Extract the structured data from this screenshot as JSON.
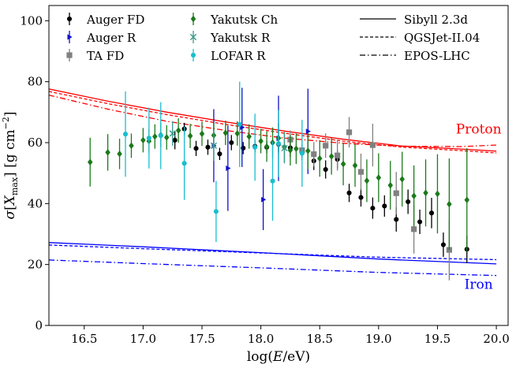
{
  "chart_data": {
    "type": "scatter",
    "xlabel": "log(E/eV)",
    "ylabel": "σ[X_max] [g cm^−2]",
    "xlim": [
      16.2,
      20.1
    ],
    "ylim": [
      0,
      105
    ],
    "xticks": [
      "16.5",
      "17.0",
      "17.5",
      "18.0",
      "18.5",
      "19.0",
      "19.5",
      "20.0"
    ],
    "yticks": [
      "0",
      "20",
      "40",
      "60",
      "80",
      "100"
    ],
    "grid": false,
    "legend_placement": "top",
    "data_series": [
      {
        "name": "Auger FD",
        "marker": "circle",
        "color": "#000000",
        "points": [
          [
            17.27,
            60.8,
            3.0
          ],
          [
            17.35,
            64.5,
            2.0
          ],
          [
            17.45,
            58.1,
            2.5
          ],
          [
            17.55,
            58.5,
            2.5
          ],
          [
            17.65,
            56.3,
            2.0
          ],
          [
            17.75,
            60.0,
            2.5
          ],
          [
            17.85,
            58.2,
            2.0
          ],
          [
            17.95,
            58.8,
            2.0
          ],
          [
            18.05,
            58.5,
            2.0
          ],
          [
            18.15,
            59.5,
            2.5
          ],
          [
            18.25,
            58.3,
            3.0
          ],
          [
            18.35,
            56.8,
            2.5
          ],
          [
            18.45,
            54.0,
            3.0
          ],
          [
            18.55,
            51.2,
            3.0
          ],
          [
            18.65,
            54.5,
            3.0
          ],
          [
            18.75,
            43.5,
            3.0
          ],
          [
            18.85,
            42.0,
            3.0
          ],
          [
            18.95,
            38.5,
            3.5
          ],
          [
            19.05,
            39.2,
            3.5
          ],
          [
            19.15,
            34.8,
            4.0
          ],
          [
            19.25,
            40.6,
            4.0
          ],
          [
            19.35,
            34.0,
            4.0
          ],
          [
            19.45,
            36.9,
            5.0
          ],
          [
            19.55,
            26.5,
            4.0
          ],
          [
            19.75,
            25.0,
            4.5
          ]
        ]
      },
      {
        "name": "Auger R",
        "marker": "triangle-right",
        "color": "#1010cc",
        "points": [
          [
            17.6,
            59.0,
            12.0
          ],
          [
            17.72,
            51.6,
            14.0
          ],
          [
            17.84,
            65.0,
            13.0
          ],
          [
            18.02,
            41.3,
            10.0
          ],
          [
            18.15,
            61.4,
            14.0
          ],
          [
            18.4,
            63.7,
            14.0
          ]
        ]
      },
      {
        "name": "TA FD",
        "marker": "square",
        "color": "#808080",
        "points": [
          [
            18.25,
            61.0,
            3.0
          ],
          [
            18.35,
            57.5,
            3.0
          ],
          [
            18.45,
            56.2,
            4.0
          ],
          [
            18.55,
            59.0,
            4.0
          ],
          [
            18.65,
            55.8,
            5.0
          ],
          [
            18.75,
            63.4,
            5.0
          ],
          [
            18.85,
            50.4,
            6.0
          ],
          [
            18.95,
            59.2,
            7.0
          ],
          [
            19.15,
            43.4,
            7.0
          ],
          [
            19.3,
            31.6,
            8.0
          ],
          [
            19.6,
            24.8,
            10.0
          ]
        ]
      },
      {
        "name": "Yakutsk Ch",
        "marker": "diamond",
        "color": "#1a7a1a",
        "points": [
          [
            16.55,
            53.6,
            8.0
          ],
          [
            16.7,
            56.8,
            6.0
          ],
          [
            16.8,
            56.3,
            5.0
          ],
          [
            16.9,
            59.0,
            4.0
          ],
          [
            17.0,
            60.8,
            4.0
          ],
          [
            17.05,
            60.5,
            4.0
          ],
          [
            17.1,
            62.0,
            4.0
          ],
          [
            17.15,
            62.5,
            4.0
          ],
          [
            17.2,
            61.7,
            4.0
          ],
          [
            17.3,
            64.0,
            4.0
          ],
          [
            17.4,
            62.2,
            4.0
          ],
          [
            17.5,
            62.9,
            4.0
          ],
          [
            17.6,
            62.4,
            4.0
          ],
          [
            17.7,
            63.2,
            4.0
          ],
          [
            17.8,
            63.0,
            4.0
          ],
          [
            17.9,
            62.0,
            4.0
          ],
          [
            18.0,
            60.5,
            4.0
          ],
          [
            18.05,
            58.7,
            5.0
          ],
          [
            18.1,
            60.0,
            5.0
          ],
          [
            18.15,
            61.5,
            5.0
          ],
          [
            18.2,
            58.5,
            5.0
          ],
          [
            18.25,
            57.5,
            5.0
          ],
          [
            18.3,
            58.0,
            5.0
          ],
          [
            18.4,
            57.3,
            6.0
          ],
          [
            18.5,
            54.8,
            6.0
          ],
          [
            18.6,
            55.5,
            6.0
          ],
          [
            18.7,
            53.0,
            7.0
          ],
          [
            18.8,
            52.5,
            7.0
          ],
          [
            18.9,
            47.5,
            7.0
          ],
          [
            19.0,
            48.5,
            8.0
          ],
          [
            19.1,
            46.0,
            8.0
          ],
          [
            19.2,
            48.0,
            9.0
          ],
          [
            19.3,
            42.5,
            10.0
          ],
          [
            19.4,
            43.5,
            11.0
          ],
          [
            19.5,
            43.2,
            13.0
          ],
          [
            19.6,
            39.8,
            15.0
          ],
          [
            19.75,
            41.2,
            17.0
          ]
        ]
      },
      {
        "name": "Yakutsk R",
        "marker": "x",
        "color": "#3a9a8a",
        "points": [
          [
            17.25,
            63.0,
            4.0
          ],
          [
            17.6,
            59.0,
            5.0
          ],
          [
            18.2,
            58.2,
            5.0
          ]
        ]
      },
      {
        "name": "LOFAR R",
        "marker": "circle",
        "color": "#17becf",
        "points": [
          [
            16.85,
            62.8,
            14.0
          ],
          [
            17.05,
            61.5,
            10.0
          ],
          [
            17.15,
            62.3,
            11.0
          ],
          [
            17.35,
            53.2,
            12.0
          ],
          [
            17.62,
            37.4,
            10.0
          ],
          [
            17.82,
            66.0,
            14.0
          ],
          [
            17.95,
            58.5,
            11.0
          ],
          [
            18.1,
            47.4,
            13.0
          ],
          [
            18.15,
            59.7,
            11.0
          ],
          [
            18.35,
            56.5,
            11.0
          ]
        ]
      }
    ],
    "model_series": [
      {
        "name": "Sibyll 2.3d",
        "style": "solid",
        "proton": {
          "x": [
            16.2,
            16.7,
            17.2,
            17.7,
            18.2,
            18.7,
            19.2,
            19.7,
            20.0
          ],
          "y": [
            77.6,
            73.6,
            70.0,
            66.8,
            63.8,
            61.1,
            58.9,
            57.9,
            57.2
          ]
        },
        "iron": {
          "x": [
            16.2,
            17.0,
            18.0,
            19.0,
            20.0
          ],
          "y": [
            27.2,
            25.8,
            23.9,
            21.8,
            20.2
          ]
        }
      },
      {
        "name": "QGSJet-II.04",
        "style": "dashed",
        "proton": {
          "x": [
            16.2,
            16.7,
            17.2,
            17.7,
            18.2,
            18.7,
            19.2,
            19.7,
            20.0
          ],
          "y": [
            76.8,
            72.8,
            69.2,
            66.0,
            63.1,
            60.5,
            58.5,
            57.4,
            56.6
          ]
        },
        "iron": {
          "x": [
            16.2,
            17.0,
            18.0,
            19.0,
            20.0
          ],
          "y": [
            26.4,
            25.2,
            23.8,
            22.4,
            21.6
          ]
        }
      },
      {
        "name": "EPOS-LHC",
        "style": "dashdot",
        "proton": {
          "x": [
            16.2,
            16.7,
            17.2,
            17.7,
            18.2,
            18.7,
            19.2,
            19.7,
            20.0
          ],
          "y": [
            75.6,
            71.0,
            67.0,
            64.0,
            61.5,
            59.8,
            58.8,
            58.7,
            59.2
          ]
        },
        "iron": {
          "x": [
            16.2,
            17.0,
            18.0,
            19.0,
            20.0
          ],
          "y": [
            21.5,
            20.3,
            18.9,
            17.4,
            16.4
          ]
        }
      }
    ],
    "annotations": [
      {
        "text": "Proton",
        "x": 19.85,
        "y": 63.0,
        "color": "#ff0000"
      },
      {
        "text": "Iron",
        "x": 19.85,
        "y": 12.0,
        "color": "#0000ff"
      }
    ],
    "colors": {
      "proton": "#ff0000",
      "iron": "#0000ff"
    }
  }
}
